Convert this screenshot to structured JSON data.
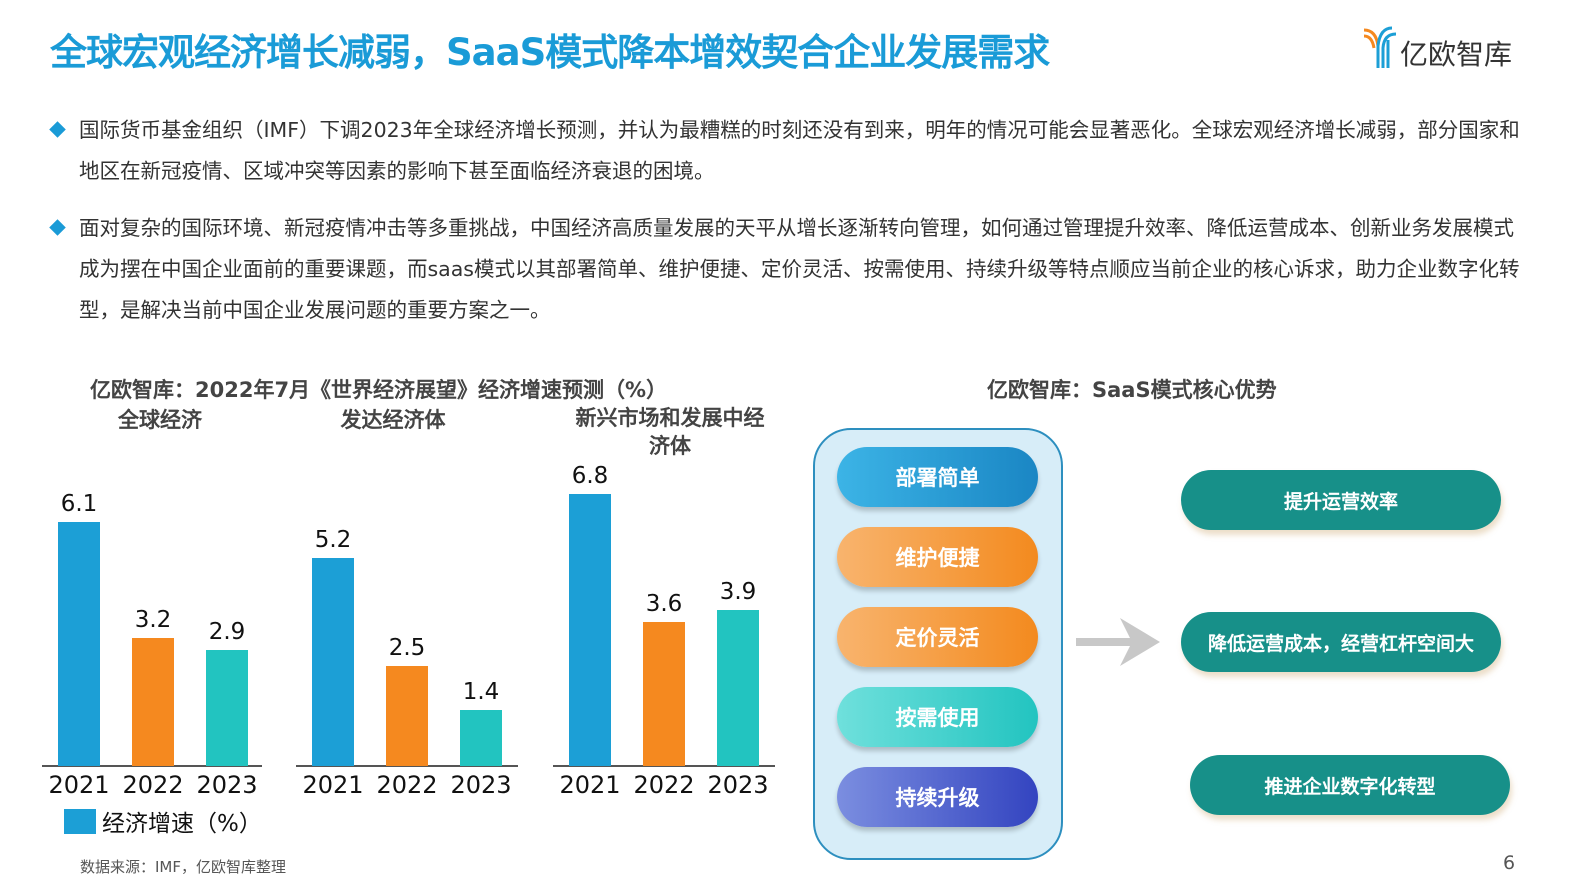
{
  "header": {
    "title": "全球宏观经济增长减弱，SaaS模式降本增效契合企业发展需求",
    "logo_text": "亿欧智库"
  },
  "bullets": [
    "国际货币基金组织（IMF）下调2023年全球经济增长预测，并认为最糟糕的时刻还没有到来，明年的情况可能会显著恶化。全球宏观经济增长减弱，部分国家和地区在新冠疫情、区域冲突等因素的影响下甚至面临经济衰退的困境。",
    "面对复杂的国际环境、新冠疫情冲击等多重挑战，中国经济高质量发展的天平从增长逐渐转向管理，如何通过管理提升效率、降低运营成本、创新业务发展模式成为摆在中国企业面前的重要课题，而saas模式以其部署简单、维护便捷、定价灵活、按需使用、持续升级等特点顺应当前企业的核心诉求，助力企业数字化转型，是解决当前中国企业发展问题的重要方案之一。"
  ],
  "chart_data": {
    "type": "bar",
    "title": "亿欧智库：2022年7月《世界经济展望》经济增速预测（%）",
    "legend": "经济增速（%）",
    "legend_position": "bottom-left",
    "grid": false,
    "colors": [
      "#1c9fd6",
      "#f5891f",
      "#22c4c0"
    ],
    "groups": [
      {
        "name": "全球经济",
        "categories": [
          "2021",
          "2022",
          "2023"
        ],
        "values": [
          6.1,
          3.2,
          2.9
        ]
      },
      {
        "name": "发达经济体",
        "categories": [
          "2021",
          "2022",
          "2023"
        ],
        "values": [
          5.2,
          2.5,
          1.4
        ]
      },
      {
        "name": "新兴市场和发展中经济体",
        "categories": [
          "2021",
          "2022",
          "2023"
        ],
        "values": [
          6.8,
          3.6,
          3.9
        ]
      }
    ]
  },
  "diagram": {
    "title": "亿欧智库：SaaS模式核心优势",
    "advantages": [
      "部署简单",
      "维护便捷",
      "定价灵活",
      "按需使用",
      "持续升级"
    ],
    "outcomes": [
      "提升运营效率",
      "降低运营成本，经营杠杆空间大",
      "推进企业数字化转型"
    ]
  },
  "footer": {
    "source": "数据来源：IMF，亿欧智库整理",
    "page": "6"
  }
}
